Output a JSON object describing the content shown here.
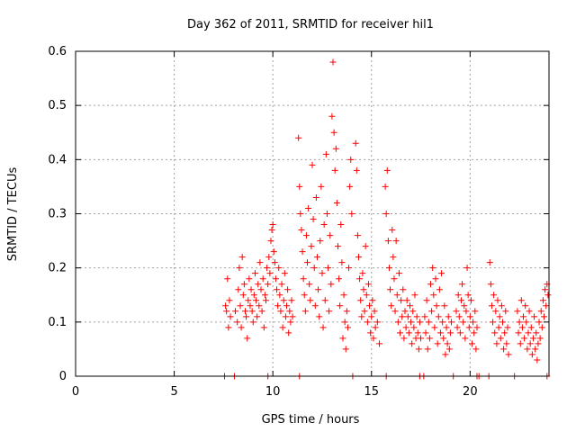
{
  "chart_data": {
    "type": "scatter",
    "title": "Day 362 of 2011, SRMTID for receiver hil1",
    "xlabel": "GPS time / hours",
    "ylabel": "SRMTID / TECUs",
    "xlim": [
      0,
      24
    ],
    "ylim": [
      0,
      0.6
    ],
    "xticks": [
      0,
      5,
      10,
      15,
      20
    ],
    "yticks": [
      0,
      0.1,
      0.2,
      0.3,
      0.4,
      0.5,
      0.6
    ],
    "grid": true,
    "marker": "+",
    "color": "#ff0000",
    "series": [
      {
        "name": "hil1",
        "points": [
          [
            7.6,
            0.13
          ],
          [
            7.65,
            0.12
          ],
          [
            7.7,
            0.18
          ],
          [
            7.75,
            0.09
          ],
          [
            7.8,
            0.14
          ],
          [
            7.85,
            0.11
          ],
          [
            8.1,
            0.12
          ],
          [
            8.2,
            0.1
          ],
          [
            8.25,
            0.16
          ],
          [
            8.3,
            0.2
          ],
          [
            8.35,
            0.13
          ],
          [
            8.4,
            0.09
          ],
          [
            8.45,
            0.22
          ],
          [
            8.5,
            0.15
          ],
          [
            8.55,
            0.17
          ],
          [
            8.6,
            0.12
          ],
          [
            8.65,
            0.11
          ],
          [
            8.7,
            0.07
          ],
          [
            8.75,
            0.14
          ],
          [
            8.8,
            0.18
          ],
          [
            8.85,
            0.13
          ],
          [
            8.9,
            0.16
          ],
          [
            8.95,
            0.12
          ],
          [
            9.0,
            0.1
          ],
          [
            9.05,
            0.15
          ],
          [
            9.1,
            0.19
          ],
          [
            9.15,
            0.14
          ],
          [
            9.2,
            0.11
          ],
          [
            9.25,
            0.17
          ],
          [
            9.3,
            0.13
          ],
          [
            9.35,
            0.21
          ],
          [
            9.4,
            0.16
          ],
          [
            9.45,
            0.12
          ],
          [
            9.5,
            0.18
          ],
          [
            9.55,
            0.09
          ],
          [
            9.6,
            0.15
          ],
          [
            9.65,
            0.14
          ],
          [
            9.7,
            0.2
          ],
          [
            9.75,
            0.17
          ],
          [
            9.8,
            0.22
          ],
          [
            9.85,
            0.19
          ],
          [
            9.9,
            0.25
          ],
          [
            9.95,
            0.27
          ],
          [
            10.0,
            0.28
          ],
          [
            10.05,
            0.23
          ],
          [
            10.1,
            0.21
          ],
          [
            10.15,
            0.18
          ],
          [
            10.2,
            0.16
          ],
          [
            10.25,
            0.13
          ],
          [
            10.3,
            0.2
          ],
          [
            10.35,
            0.15
          ],
          [
            10.4,
            0.12
          ],
          [
            10.45,
            0.17
          ],
          [
            10.5,
            0.09
          ],
          [
            10.55,
            0.14
          ],
          [
            10.6,
            0.19
          ],
          [
            10.65,
            0.11
          ],
          [
            10.7,
            0.13
          ],
          [
            10.75,
            0.16
          ],
          [
            10.8,
            0.08
          ],
          [
            10.85,
            0.12
          ],
          [
            10.9,
            0.1
          ],
          [
            10.95,
            0.14
          ],
          [
            11.0,
            0.11
          ],
          [
            11.3,
            0.44
          ],
          [
            11.35,
            0.35
          ],
          [
            11.4,
            0.3
          ],
          [
            11.45,
            0.27
          ],
          [
            11.5,
            0.23
          ],
          [
            11.55,
            0.18
          ],
          [
            11.6,
            0.15
          ],
          [
            11.65,
            0.12
          ],
          [
            11.7,
            0.26
          ],
          [
            11.75,
            0.21
          ],
          [
            11.8,
            0.31
          ],
          [
            11.85,
            0.17
          ],
          [
            11.9,
            0.14
          ],
          [
            11.95,
            0.24
          ],
          [
            12.0,
            0.39
          ],
          [
            12.05,
            0.29
          ],
          [
            12.1,
            0.2
          ],
          [
            12.15,
            0.13
          ],
          [
            12.2,
            0.33
          ],
          [
            12.25,
            0.22
          ],
          [
            12.3,
            0.16
          ],
          [
            12.35,
            0.11
          ],
          [
            12.4,
            0.25
          ],
          [
            12.45,
            0.35
          ],
          [
            12.5,
            0.19
          ],
          [
            12.55,
            0.09
          ],
          [
            12.6,
            0.28
          ],
          [
            12.65,
            0.14
          ],
          [
            12.7,
            0.41
          ],
          [
            12.75,
            0.3
          ],
          [
            12.8,
            0.2
          ],
          [
            12.85,
            0.12
          ],
          [
            12.9,
            0.26
          ],
          [
            12.95,
            0.17
          ],
          [
            13.0,
            0.48
          ],
          [
            13.05,
            0.58
          ],
          [
            13.1,
            0.45
          ],
          [
            13.15,
            0.38
          ],
          [
            13.2,
            0.42
          ],
          [
            13.25,
            0.32
          ],
          [
            13.3,
            0.24
          ],
          [
            13.35,
            0.18
          ],
          [
            13.4,
            0.13
          ],
          [
            13.45,
            0.28
          ],
          [
            13.5,
            0.21
          ],
          [
            13.55,
            0.07
          ],
          [
            13.6,
            0.15
          ],
          [
            13.65,
            0.1
          ],
          [
            13.7,
            0.05
          ],
          [
            13.75,
            0.12
          ],
          [
            13.8,
            0.09
          ],
          [
            13.85,
            0.2
          ],
          [
            13.9,
            0.35
          ],
          [
            13.95,
            0.4
          ],
          [
            14.0,
            0.3
          ],
          [
            14.2,
            0.43
          ],
          [
            14.25,
            0.38
          ],
          [
            14.3,
            0.26
          ],
          [
            14.35,
            0.22
          ],
          [
            14.4,
            0.18
          ],
          [
            14.45,
            0.14
          ],
          [
            14.5,
            0.11
          ],
          [
            14.55,
            0.19
          ],
          [
            14.6,
            0.16
          ],
          [
            14.65,
            0.12
          ],
          [
            14.7,
            0.24
          ],
          [
            14.75,
            0.15
          ],
          [
            14.8,
            0.1
          ],
          [
            14.85,
            0.17
          ],
          [
            14.9,
            0.13
          ],
          [
            14.95,
            0.08
          ],
          [
            15.0,
            0.11
          ],
          [
            15.05,
            0.14
          ],
          [
            15.1,
            0.07
          ],
          [
            15.15,
            0.12
          ],
          [
            15.2,
            0.09
          ],
          [
            15.3,
            0.1
          ],
          [
            15.4,
            0.06
          ],
          [
            15.7,
            0.35
          ],
          [
            15.75,
            0.3
          ],
          [
            15.8,
            0.38
          ],
          [
            15.85,
            0.25
          ],
          [
            15.9,
            0.2
          ],
          [
            15.95,
            0.16
          ],
          [
            16.0,
            0.13
          ],
          [
            16.05,
            0.27
          ],
          [
            16.1,
            0.22
          ],
          [
            16.15,
            0.18
          ],
          [
            16.2,
            0.12
          ],
          [
            16.25,
            0.25
          ],
          [
            16.3,
            0.15
          ],
          [
            16.35,
            0.1
          ],
          [
            16.4,
            0.19
          ],
          [
            16.45,
            0.08
          ],
          [
            16.5,
            0.14
          ],
          [
            16.55,
            0.11
          ],
          [
            16.6,
            0.16
          ],
          [
            16.65,
            0.07
          ],
          [
            16.7,
            0.12
          ],
          [
            16.75,
            0.09
          ],
          [
            16.8,
            0.14
          ],
          [
            16.85,
            0.11
          ],
          [
            16.9,
            0.08
          ],
          [
            16.95,
            0.13
          ],
          [
            17.0,
            0.1
          ],
          [
            17.05,
            0.06
          ],
          [
            17.1,
            0.12
          ],
          [
            17.15,
            0.09
          ],
          [
            17.2,
            0.15
          ],
          [
            17.25,
            0.07
          ],
          [
            17.3,
            0.11
          ],
          [
            17.35,
            0.08
          ],
          [
            17.4,
            0.05
          ],
          [
            17.45,
            0.1
          ],
          [
            17.5,
            0.07
          ],
          [
            17.7,
            0.11
          ],
          [
            17.75,
            0.08
          ],
          [
            17.8,
            0.14
          ],
          [
            17.85,
            0.05
          ],
          [
            17.9,
            0.1
          ],
          [
            17.95,
            0.07
          ],
          [
            18.0,
            0.17
          ],
          [
            18.05,
            0.12
          ],
          [
            18.1,
            0.2
          ],
          [
            18.15,
            0.15
          ],
          [
            18.2,
            0.09
          ],
          [
            18.25,
            0.18
          ],
          [
            18.3,
            0.13
          ],
          [
            18.35,
            0.06
          ],
          [
            18.4,
            0.11
          ],
          [
            18.45,
            0.16
          ],
          [
            18.5,
            0.08
          ],
          [
            18.55,
            0.19
          ],
          [
            18.6,
            0.1
          ],
          [
            18.65,
            0.07
          ],
          [
            18.7,
            0.13
          ],
          [
            18.75,
            0.04
          ],
          [
            18.8,
            0.09
          ],
          [
            18.85,
            0.06
          ],
          [
            18.9,
            0.11
          ],
          [
            18.95,
            0.05
          ],
          [
            19.0,
            0.08
          ],
          [
            19.05,
            0.1
          ],
          [
            19.3,
            0.12
          ],
          [
            19.35,
            0.09
          ],
          [
            19.4,
            0.15
          ],
          [
            19.45,
            0.11
          ],
          [
            19.5,
            0.08
          ],
          [
            19.55,
            0.14
          ],
          [
            19.6,
            0.17
          ],
          [
            19.65,
            0.1
          ],
          [
            19.7,
            0.13
          ],
          [
            19.75,
            0.07
          ],
          [
            19.8,
            0.12
          ],
          [
            19.85,
            0.2
          ],
          [
            19.9,
            0.15
          ],
          [
            19.95,
            0.09
          ],
          [
            20.0,
            0.11
          ],
          [
            20.05,
            0.14
          ],
          [
            20.1,
            0.06
          ],
          [
            20.15,
            0.1
          ],
          [
            20.2,
            0.08
          ],
          [
            20.25,
            0.12
          ],
          [
            20.3,
            0.05
          ],
          [
            20.35,
            0.09
          ],
          [
            21.0,
            0.21
          ],
          [
            21.05,
            0.17
          ],
          [
            21.1,
            0.13
          ],
          [
            21.15,
            0.1
          ],
          [
            21.2,
            0.15
          ],
          [
            21.25,
            0.08
          ],
          [
            21.3,
            0.12
          ],
          [
            21.35,
            0.06
          ],
          [
            21.4,
            0.14
          ],
          [
            21.45,
            0.09
          ],
          [
            21.5,
            0.11
          ],
          [
            21.55,
            0.07
          ],
          [
            21.6,
            0.13
          ],
          [
            21.65,
            0.1
          ],
          [
            21.7,
            0.05
          ],
          [
            21.75,
            0.08
          ],
          [
            21.8,
            0.12
          ],
          [
            21.85,
            0.06
          ],
          [
            21.9,
            0.09
          ],
          [
            21.95,
            0.04
          ],
          [
            22.4,
            0.12
          ],
          [
            22.45,
            0.08
          ],
          [
            22.5,
            0.1
          ],
          [
            22.55,
            0.06
          ],
          [
            22.6,
            0.14
          ],
          [
            22.65,
            0.09
          ],
          [
            22.7,
            0.11
          ],
          [
            22.75,
            0.07
          ],
          [
            22.8,
            0.13
          ],
          [
            22.85,
            0.1
          ],
          [
            22.9,
            0.05
          ],
          [
            22.95,
            0.08
          ],
          [
            23.0,
            0.12
          ],
          [
            23.05,
            0.06
          ],
          [
            23.1,
            0.09
          ],
          [
            23.15,
            0.04
          ],
          [
            23.2,
            0.07
          ],
          [
            23.25,
            0.11
          ],
          [
            23.3,
            0.05
          ],
          [
            23.35,
            0.08
          ],
          [
            23.4,
            0.03
          ],
          [
            23.45,
            0.06
          ],
          [
            23.5,
            0.1
          ],
          [
            23.55,
            0.07
          ],
          [
            23.6,
            0.12
          ],
          [
            23.65,
            0.09
          ],
          [
            23.7,
            0.14
          ],
          [
            23.75,
            0.11
          ],
          [
            23.8,
            0.16
          ],
          [
            23.85,
            0.13
          ],
          [
            23.9,
            0.17
          ],
          [
            23.95,
            0.15
          ]
        ]
      }
    ],
    "zero_points_x": [
      7.55,
      8.05,
      9.75,
      11.35,
      14.05,
      15.75,
      17.45,
      17.65,
      19.15,
      20.35,
      20.45,
      20.95,
      22.25,
      23.9
    ]
  }
}
